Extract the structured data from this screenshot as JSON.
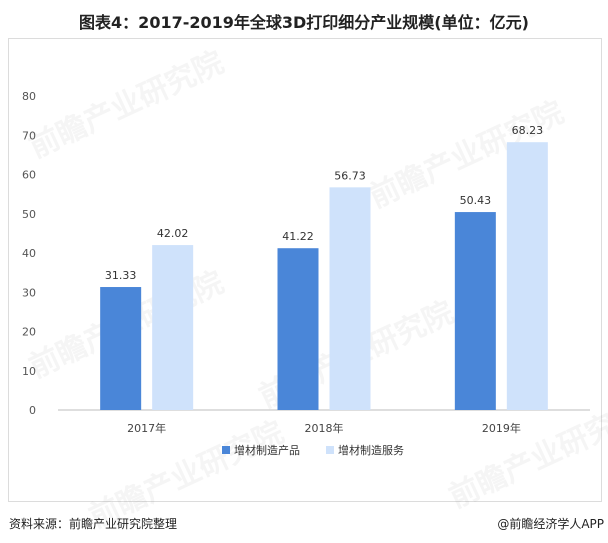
{
  "title": "图表4：2017-2019年全球3D打印细分产业规模(单位：亿元)",
  "source": "资料来源：前瞻产业研究院整理",
  "credit": "@前瞻经济学人APP",
  "watermark": "前瞻产业研究院",
  "colors": {
    "series1": "#4a86d8",
    "series2": "#cfe2fb",
    "grid": "#ececec",
    "axis": "#bdbdbd"
  },
  "chart_data": {
    "type": "bar",
    "categories": [
      "2017年",
      "2018年",
      "2019年"
    ],
    "series": [
      {
        "name": "增材制造产品",
        "values": [
          31.33,
          41.22,
          50.43
        ]
      },
      {
        "name": "增材制造服务",
        "values": [
          42.02,
          56.73,
          68.23
        ]
      }
    ],
    "ylim": [
      0,
      80
    ],
    "yticks": [
      0,
      10,
      20,
      30,
      40,
      50,
      60,
      70,
      80
    ],
    "grid": false,
    "legend": "bottom-center"
  }
}
